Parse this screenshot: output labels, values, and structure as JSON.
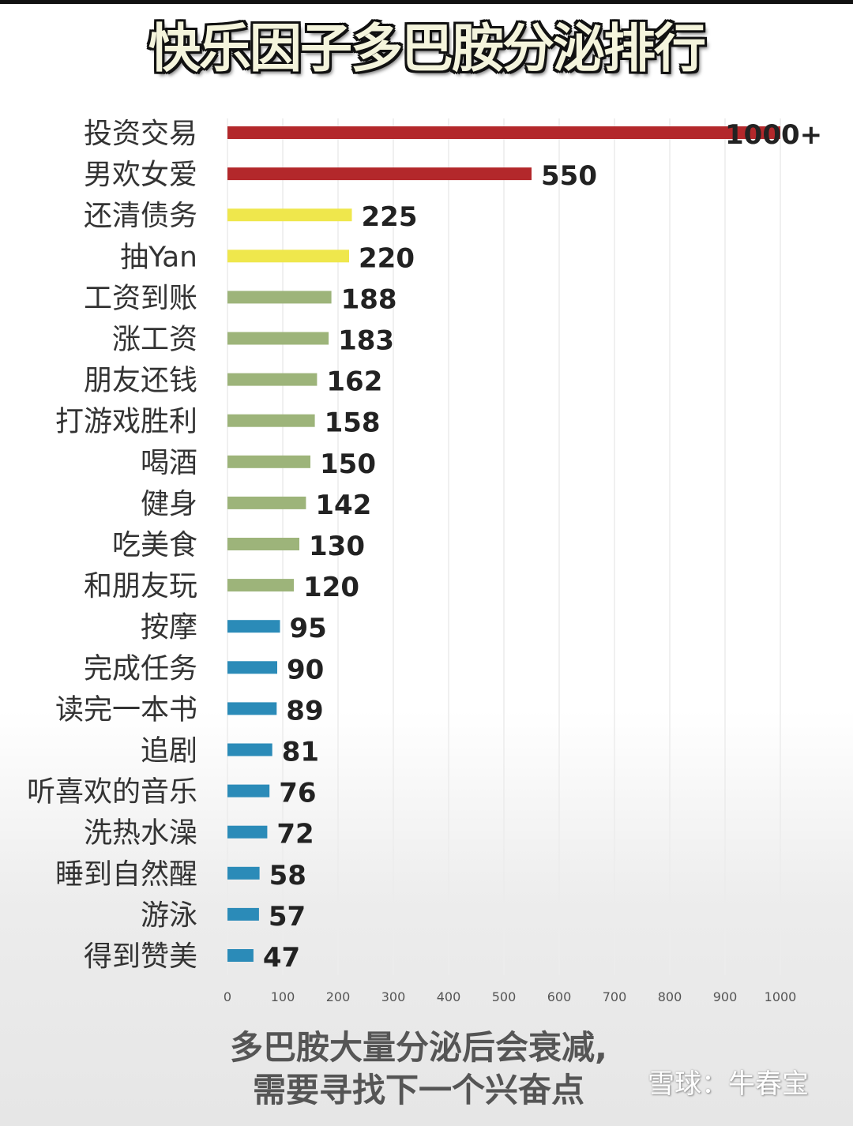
{
  "title": "快乐因子多巴胺分泌排行",
  "caption": [
    "多巴胺大量分泌后会衰减,",
    "需要寻找下一个兴奋点"
  ],
  "watermark": "雪球：牛春宝",
  "chart_data": {
    "type": "bar",
    "orientation": "horizontal",
    "title": "快乐因子多巴胺分泌排行",
    "categories": [
      "投资交易",
      "男欢女爱",
      "还清债务",
      "抽Yan",
      "工资到账",
      "涨工资",
      "朋友还钱",
      "打游戏胜利",
      "喝酒",
      "健身",
      "吃美食",
      "和朋友玩",
      "按摩",
      "完成任务",
      "读完一本书",
      "追剧",
      "听喜欢的音乐",
      "洗热水澡",
      "睡到自然醒",
      "游泳",
      "得到赞美"
    ],
    "values": [
      1000,
      550,
      225,
      220,
      188,
      183,
      162,
      158,
      150,
      142,
      130,
      120,
      95,
      90,
      89,
      81,
      76,
      72,
      58,
      57,
      47
    ],
    "data_labels": [
      "1000+",
      "550",
      "225",
      "220",
      "188",
      "183",
      "162",
      "158",
      "150",
      "142",
      "130",
      "120",
      "95",
      "90",
      "89",
      "81",
      "76",
      "72",
      "58",
      "57",
      "47"
    ],
    "colors": [
      "#b3282b",
      "#b3282b",
      "#efe74c",
      "#efe74c",
      "#9db47a",
      "#9db47a",
      "#9db47a",
      "#9db47a",
      "#9db47a",
      "#9db47a",
      "#9db47a",
      "#9db47a",
      "#2b8bb8",
      "#2b8bb8",
      "#2b8bb8",
      "#2b8bb8",
      "#2b8bb8",
      "#2b8bb8",
      "#2b8bb8",
      "#2b8bb8",
      "#2b8bb8"
    ],
    "xticks": [
      0,
      100,
      200,
      300,
      400,
      500,
      600,
      700,
      800,
      900,
      1000
    ],
    "xlim": [
      0,
      1000
    ],
    "grid": true,
    "legend": "none"
  }
}
